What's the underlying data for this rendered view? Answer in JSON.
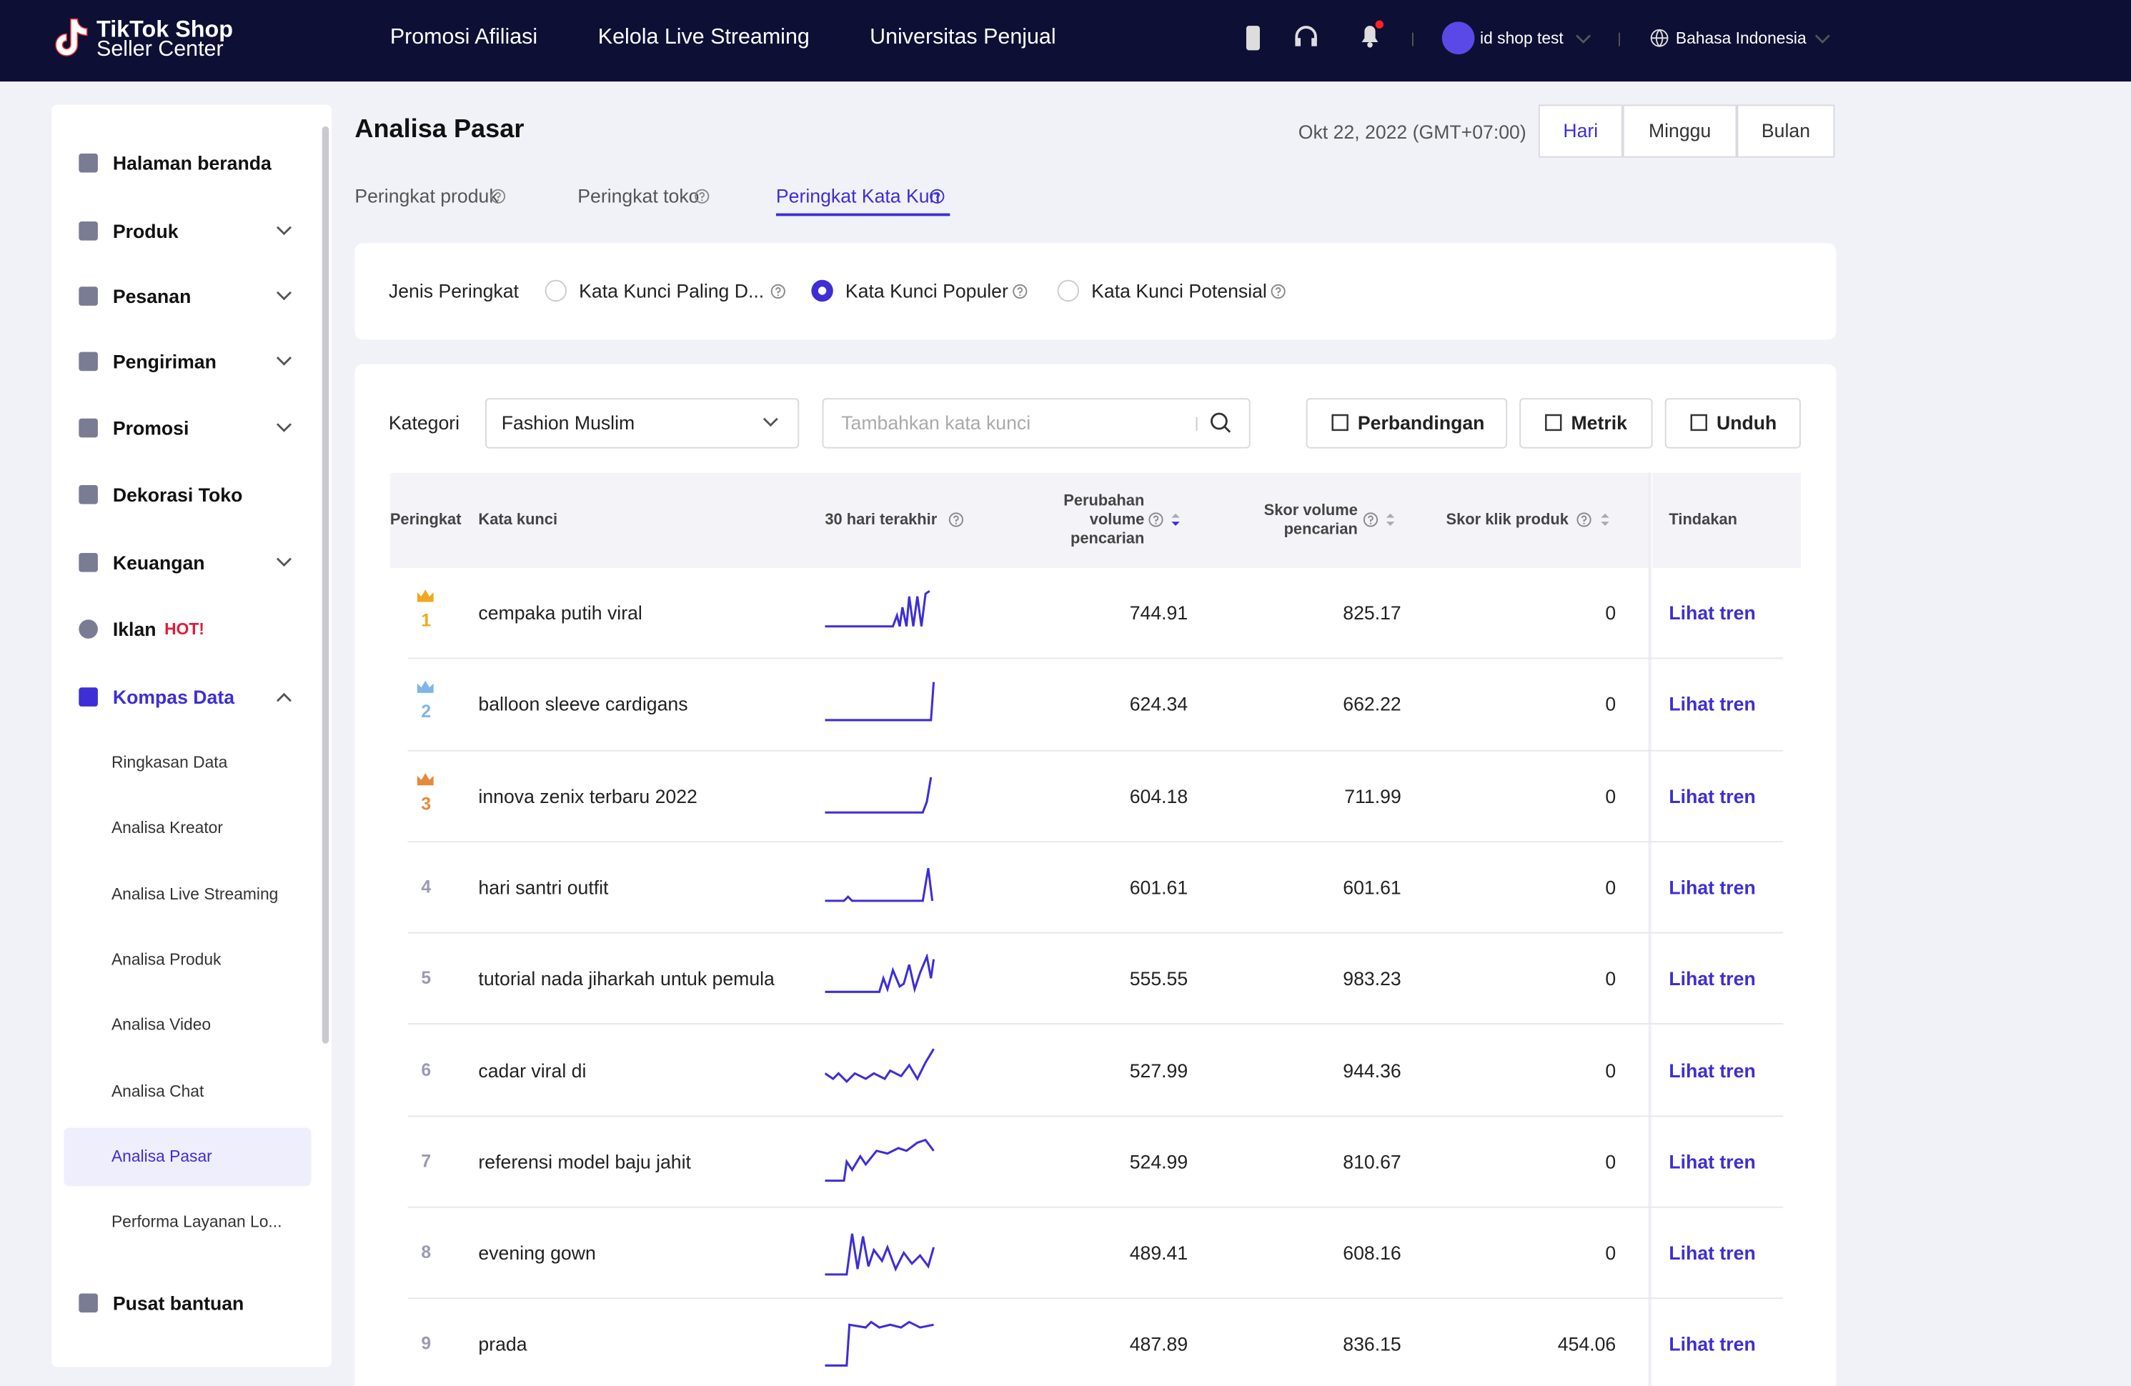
{
  "header": {
    "brand": "TikTok Shop",
    "brand_sub": "Seller Center",
    "nav": [
      "Promosi Afiliasi",
      "Kelola Live Streaming",
      "Universitas Penjual"
    ],
    "user": "id shop test",
    "language": "Bahasa Indonesia"
  },
  "sidebar": {
    "items": [
      "Halaman beranda",
      "Produk",
      "Pesanan",
      "Pengiriman",
      "Promosi",
      "Dekorasi Toko",
      "Keuangan",
      "Iklan",
      "Kompas Data"
    ],
    "hot": "HOT!",
    "sub_items": [
      "Ringkasan Data",
      "Analisa Kreator",
      "Analisa Live Streaming",
      "Analisa Produk",
      "Analisa Video",
      "Analisa Chat",
      "Analisa Pasar",
      "Performa Layanan Lo..."
    ],
    "help": "Pusat bantuan"
  },
  "page": {
    "title": "Analisa Pasar",
    "date": "Okt 22, 2022 (GMT+07:00)",
    "periods": [
      "Hari",
      "Minggu",
      "Bulan"
    ],
    "tabs": [
      "Peringkat produk",
      "Peringkat toko",
      "Peringkat Kata Kun"
    ]
  },
  "filter": {
    "label": "Jenis Peringkat",
    "options": [
      "Kata Kunci Paling D...",
      "Kata Kunci Populer",
      "Kata Kunci Potensial"
    ]
  },
  "toolbar": {
    "category_label": "Kategori",
    "category": "Fashion Muslim",
    "search_placeholder": "Tambahkan kata kunci",
    "buttons": [
      "Perbandingan",
      "Metrik",
      "Unduh"
    ]
  },
  "table": {
    "columns": [
      "Peringkat",
      "Kata kunci",
      "30 hari terakhir",
      "Perubahan volume pencarian",
      "Skor volume pencarian",
      "Skor klik produk",
      "Tindakan"
    ],
    "rows": [
      [
        1,
        "cempaka putih viral",
        744.91,
        825.17,
        0,
        "Lihat tren"
      ],
      [
        2,
        "balloon sleeve cardigans",
        624.34,
        662.22,
        0,
        "Lihat tren"
      ],
      [
        3,
        "innova zenix terbaru 2022",
        604.18,
        711.99,
        0,
        "Lihat tren"
      ],
      [
        4,
        "hari santri outfit",
        601.61,
        601.61,
        0,
        "Lihat tren"
      ],
      [
        5,
        "tutorial nada jiharkah untuk pemula",
        555.55,
        983.23,
        0,
        "Lihat tren"
      ],
      [
        6,
        "cadar viral di",
        527.99,
        944.36,
        0,
        "Lihat tren"
      ],
      [
        7,
        "referensi model baju jahit",
        524.99,
        810.67,
        0,
        "Lihat tren"
      ],
      [
        8,
        "evening gown",
        489.41,
        608.16,
        0,
        "Lihat tren"
      ],
      [
        9,
        "prada",
        487.89,
        836.15,
        454.06,
        "Lihat tren"
      ]
    ]
  }
}
